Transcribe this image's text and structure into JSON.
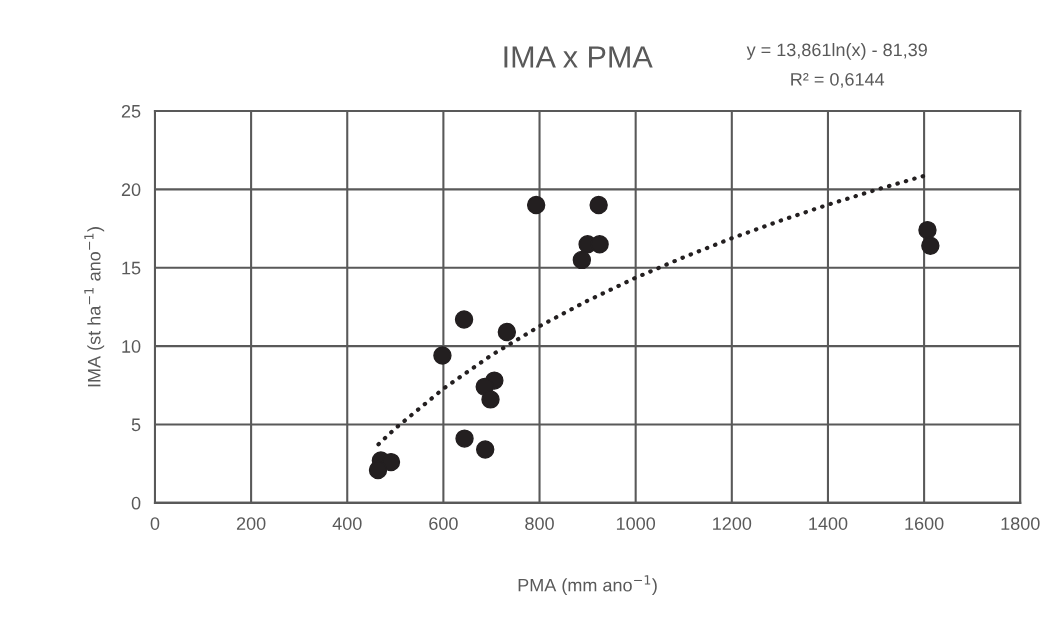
{
  "chart_data": {
    "type": "scatter",
    "title": "IMA x PMA",
    "xlabel": "PMA (mm ano$^{−1}$)",
    "ylabel": "IMA (st ha$^{−1}$ ano$^{−1}$)",
    "annotations": [
      "y = 13,861ln(x) - 81,39",
      "R² = 0,6144"
    ],
    "series": [
      {
        "color": "#231f20",
        "marker": "circle",
        "x": [
          793,
          923,
          900,
          925,
          888,
          643,
          732,
          598,
          706,
          686,
          698,
          644,
          687,
          470,
          491,
          464,
          1607,
          1613
        ],
        "values": [
          19.0,
          19.0,
          16.5,
          16.5,
          15.5,
          11.7,
          10.9,
          9.4,
          7.8,
          7.4,
          6.6,
          4.1,
          3.4,
          2.7,
          2.6,
          2.1,
          17.4,
          16.4
        ]
      },
      {
        "type": "line",
        "color": "#231f20",
        "line_style": "dotted",
        "marker": "none",
        "x": [
          465,
          500,
          600,
          700,
          800,
          900,
          1000,
          1100,
          1200,
          1300,
          1400,
          1500,
          1610
        ],
        "values": [
          3.74,
          4.75,
          7.28,
          9.42,
          11.27,
          12.9,
          14.36,
          15.67,
          16.88,
          17.99,
          19.02,
          19.97,
          20.95
        ]
      }
    ],
    "xlim": [
      0,
      1800
    ],
    "xticks": [
      0,
      200,
      400,
      600,
      800,
      1000,
      1200,
      1400,
      1600,
      1800
    ],
    "ylim": [
      0,
      25
    ],
    "yticks": [
      0,
      5,
      10,
      15,
      20,
      25
    ],
    "grid": true,
    "legend": false
  }
}
